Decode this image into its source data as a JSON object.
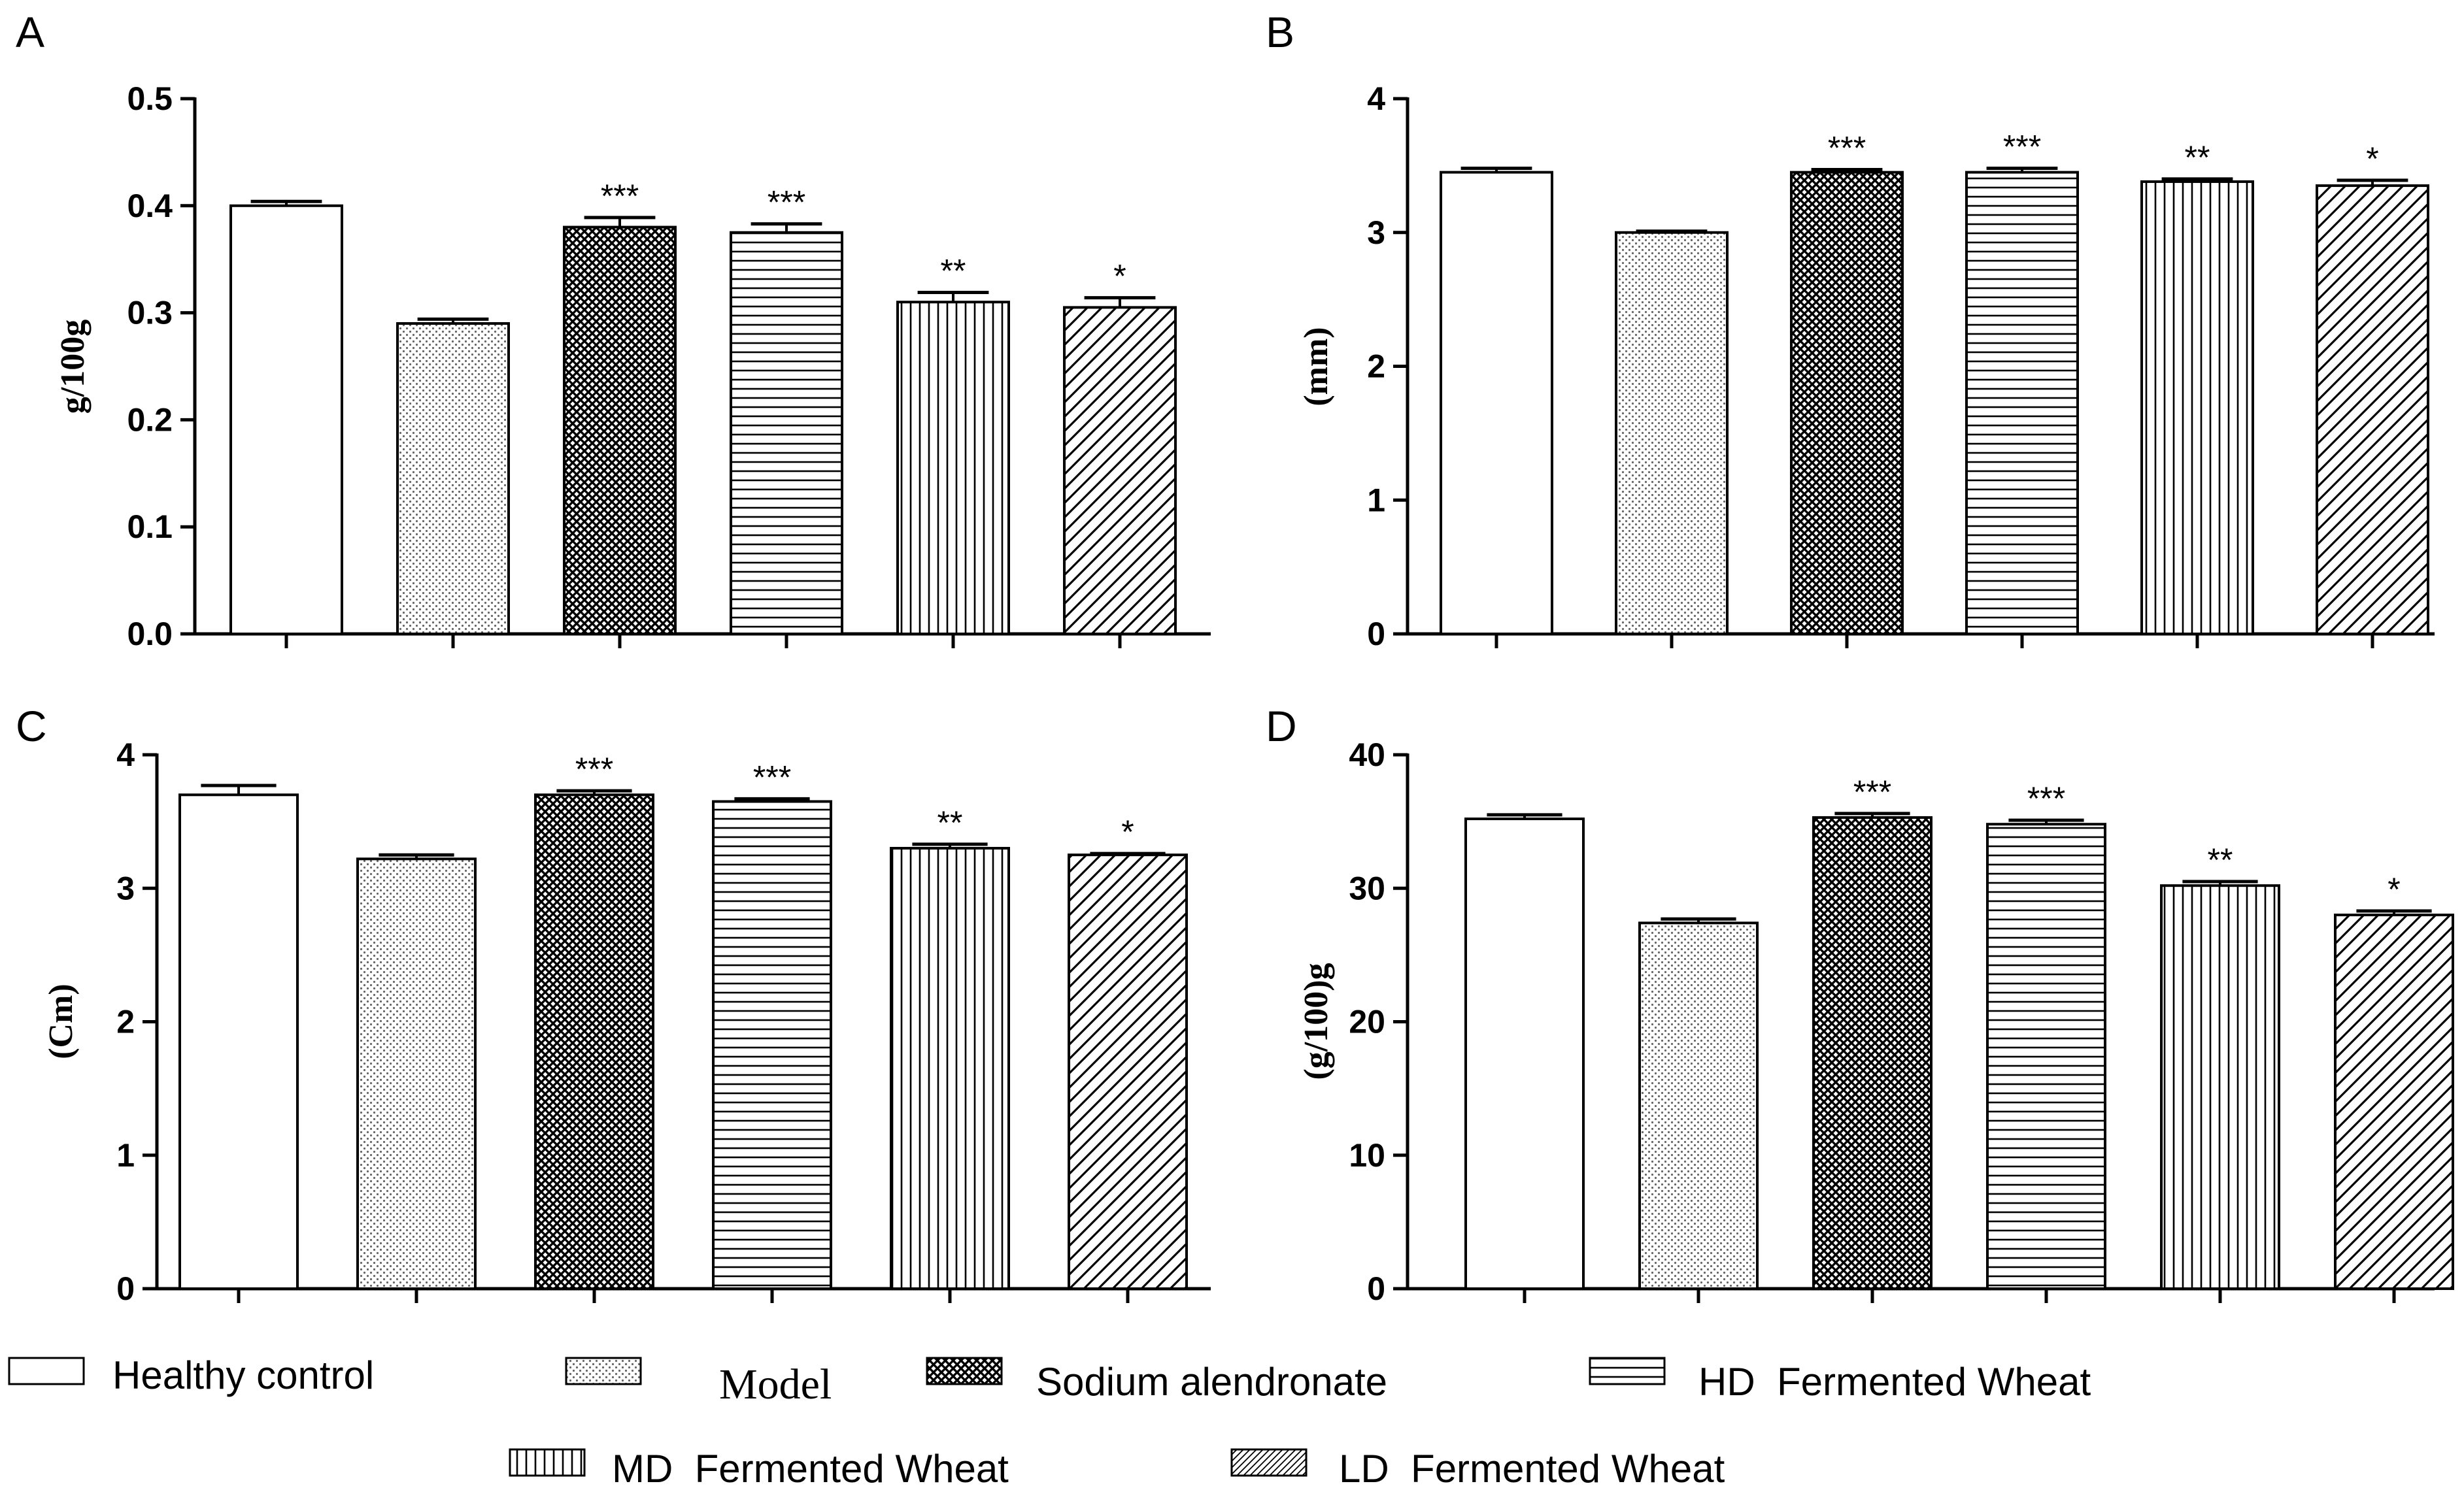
{
  "figure": {
    "legend": [
      {
        "label": "Healthy control",
        "pattern": "white"
      },
      {
        "label": "Model",
        "pattern": "dots"
      },
      {
        "label": "Sodium alendronate",
        "pattern": "cross"
      },
      {
        "label": "HD  Fermented Wheat",
        "pattern": "hlines"
      },
      {
        "label": "MD  Fermented Wheat",
        "pattern": "vlines"
      },
      {
        "label": "LD  Fermented Wheat",
        "pattern": "diag"
      }
    ]
  },
  "chart_data": [
    {
      "panel": "A",
      "type": "bar",
      "ylabel": "g/100g",
      "ylim": [
        0,
        0.5
      ],
      "yticks": [
        "0.0",
        "0.1",
        "0.2",
        "0.3",
        "0.4",
        "0.5"
      ],
      "categories": [
        "Healthy control",
        "Model",
        "Sodium alendronate",
        "HD  Fermented Wheat",
        "MD  Fermented Wheat",
        "LD  Fermented Wheat"
      ],
      "values": [
        0.4,
        0.29,
        0.38,
        0.375,
        0.31,
        0.305
      ],
      "errors": [
        0.004,
        0.004,
        0.009,
        0.008,
        0.009,
        0.009
      ],
      "significance": [
        "",
        "",
        "***",
        "***",
        "**",
        "*"
      ]
    },
    {
      "panel": "B",
      "type": "bar",
      "ylabel": "(mm)",
      "ylim": [
        0,
        4
      ],
      "yticks": [
        "0",
        "1",
        "2",
        "3",
        "4"
      ],
      "categories": [
        "Healthy control",
        "Model",
        "Sodium alendronate",
        "HD  Fermented Wheat",
        "MD  Fermented Wheat",
        "LD  Fermented Wheat"
      ],
      "values": [
        3.45,
        3.0,
        3.45,
        3.45,
        3.38,
        3.35
      ],
      "errors": [
        0.03,
        0.01,
        0.02,
        0.03,
        0.02,
        0.04
      ],
      "significance": [
        "",
        "",
        "***",
        "***",
        "**",
        "*"
      ]
    },
    {
      "panel": "C",
      "type": "bar",
      "ylabel": "(Cm)",
      "ylim": [
        0,
        4
      ],
      "yticks": [
        "0",
        "1",
        "2",
        "3",
        "4"
      ],
      "categories": [
        "Healthy control",
        "Model",
        "Sodium alendronate",
        "HD  Fermented Wheat",
        "MD  Fermented Wheat",
        "LD  Fermented Wheat"
      ],
      "values": [
        3.7,
        3.22,
        3.7,
        3.65,
        3.3,
        3.25
      ],
      "errors": [
        0.07,
        0.03,
        0.03,
        0.02,
        0.03,
        0.01
      ],
      "significance": [
        "",
        "",
        "***",
        "***",
        "**",
        "*"
      ]
    },
    {
      "panel": "D",
      "type": "bar",
      "ylabel": "(g/100)g",
      "ylim": [
        0,
        40
      ],
      "yticks": [
        "0",
        "10",
        "20",
        "30",
        "40"
      ],
      "categories": [
        "Healthy control",
        "Model",
        "Sodium alendronate",
        "HD  Fermented Wheat",
        "MD  Fermented Wheat",
        "LD  Fermented Wheat"
      ],
      "values": [
        35.2,
        27.4,
        35.3,
        34.8,
        30.2,
        28.0
      ],
      "errors": [
        0.3,
        0.3,
        0.3,
        0.3,
        0.3,
        0.3
      ],
      "significance": [
        "",
        "",
        "***",
        "***",
        "**",
        "*"
      ]
    }
  ]
}
